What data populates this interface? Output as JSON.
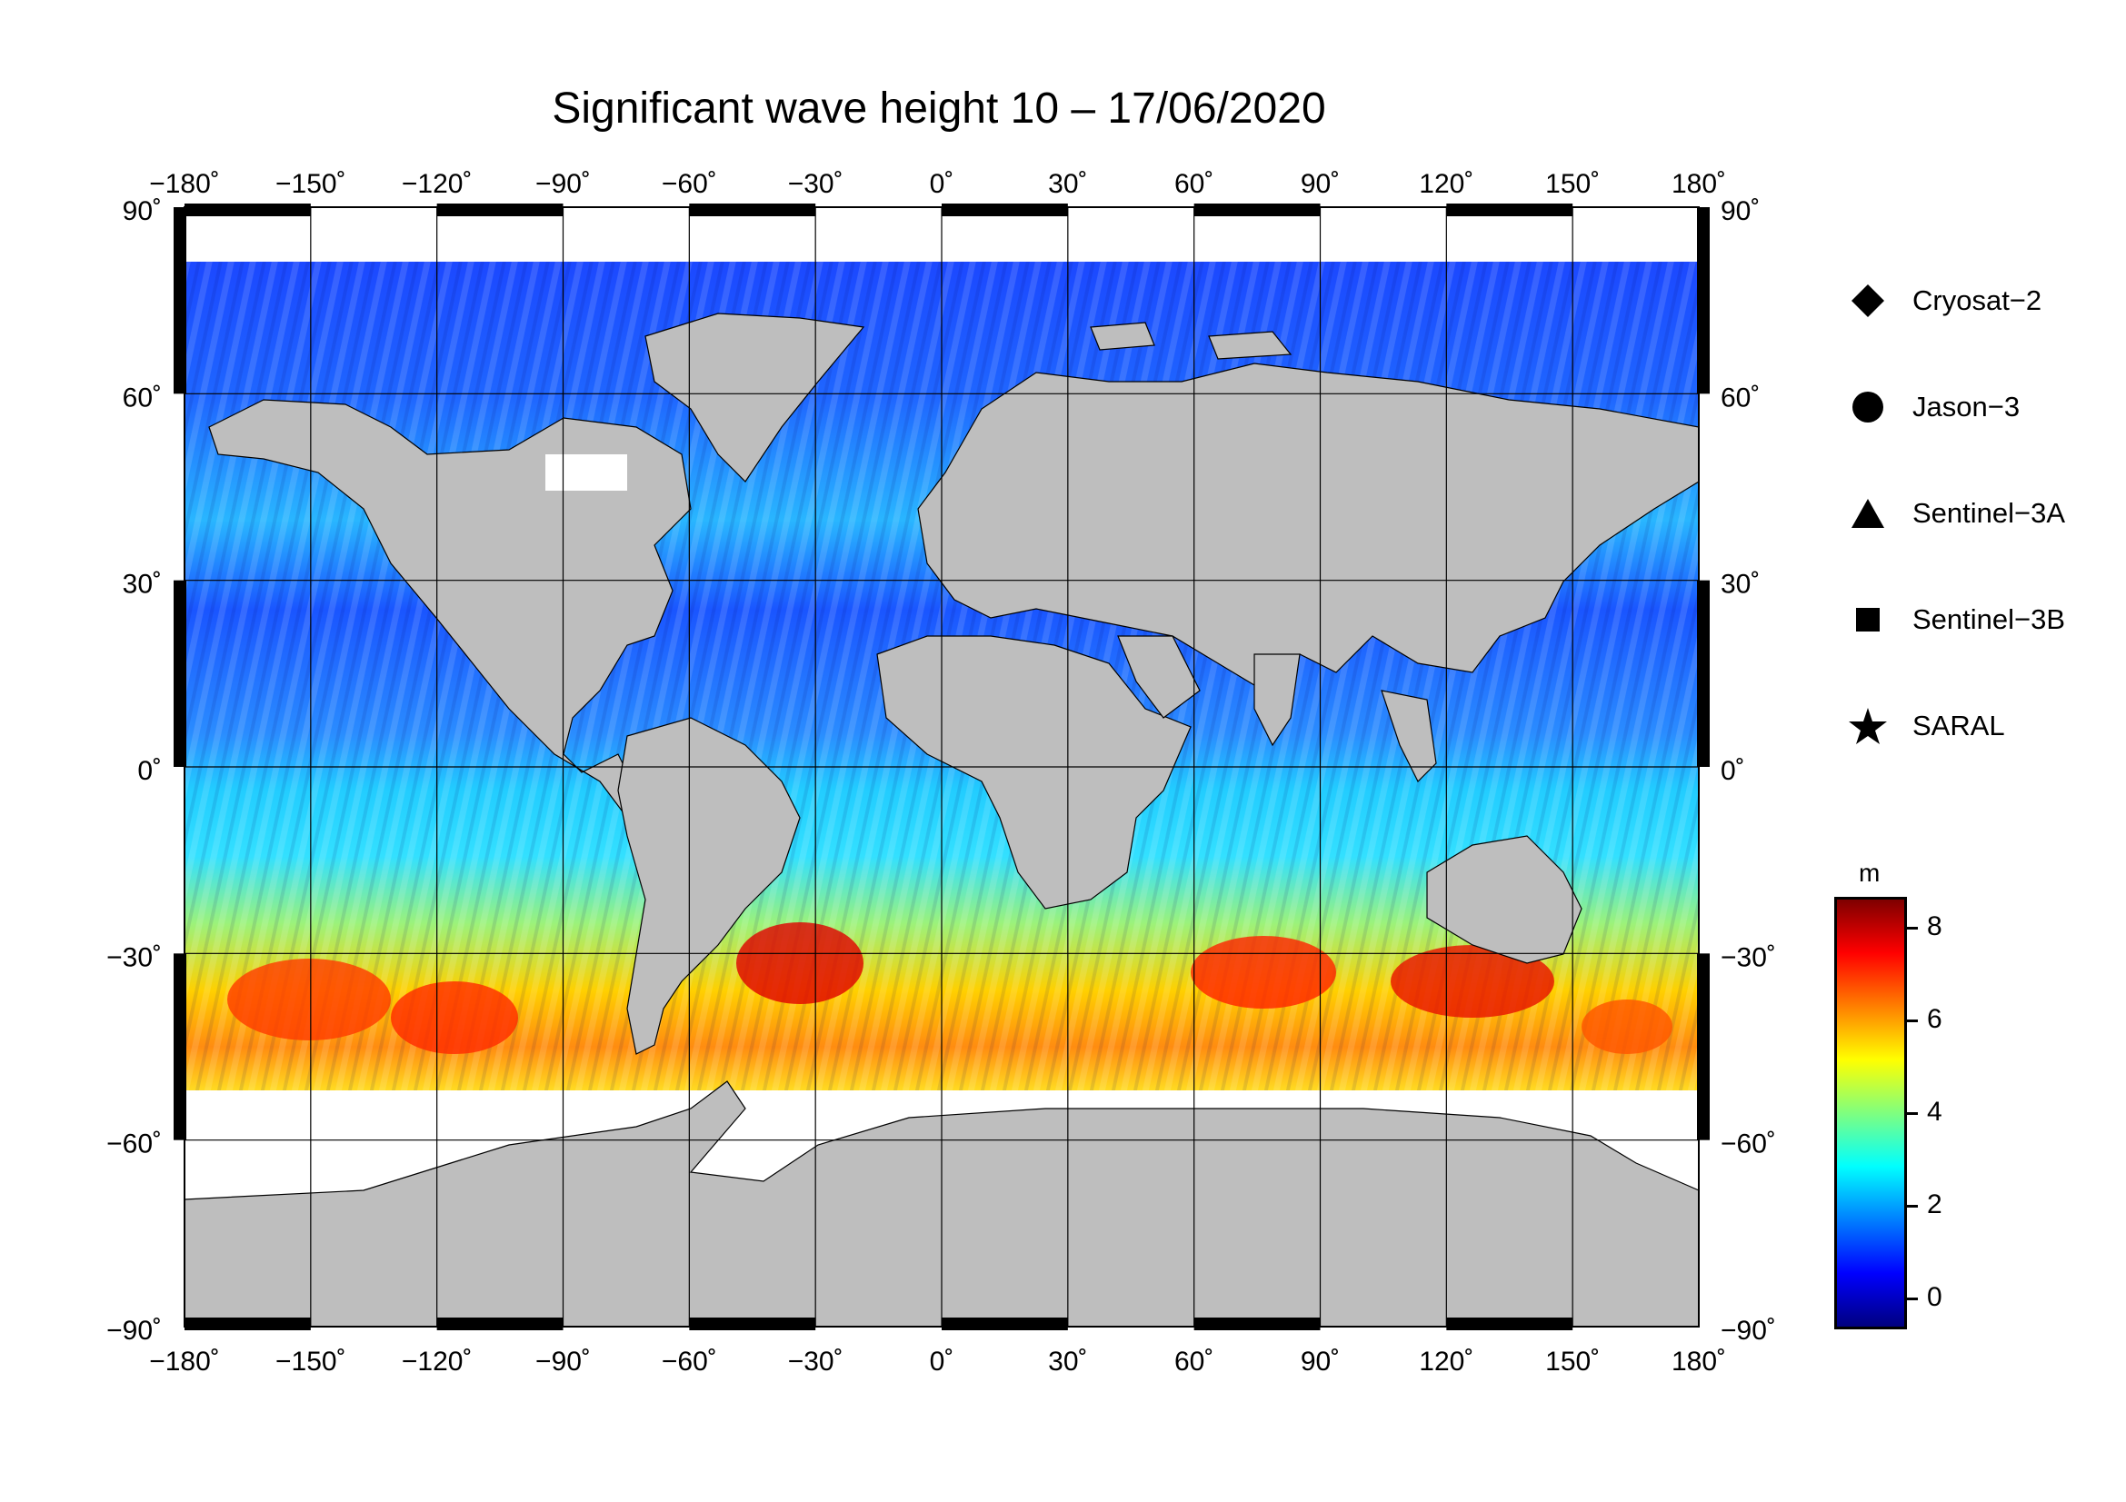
{
  "title": "Significant wave height 10 – 17/06/2020",
  "map": {
    "projection": "equirectangular",
    "lon_ticks": [
      "−180˚",
      "−150˚",
      "−120˚",
      "−90˚",
      "−60˚",
      "−30˚",
      "0˚",
      "30˚",
      "60˚",
      "90˚",
      "120˚",
      "150˚",
      "180˚"
    ],
    "lat_ticks": [
      "90˚",
      "60˚",
      "30˚",
      "0˚",
      "−30˚",
      "−60˚",
      "−90˚"
    ],
    "lon_values": [
      -180,
      -150,
      -120,
      -90,
      -60,
      -30,
      0,
      30,
      60,
      90,
      120,
      150,
      180
    ],
    "lat_values": [
      90,
      60,
      30,
      0,
      -30,
      -60,
      -90
    ],
    "land_color": "#bebebe",
    "ice_color": "#ffffff"
  },
  "legend": {
    "items": [
      {
        "label": "Cryosat−2",
        "symbol": "diamond-icon"
      },
      {
        "label": "Jason−3",
        "symbol": "circle-icon"
      },
      {
        "label": "Sentinel−3A",
        "symbol": "triangle-icon"
      },
      {
        "label": "Sentinel−3B",
        "symbol": "square-icon"
      },
      {
        "label": "SARAL",
        "symbol": "star-icon"
      }
    ]
  },
  "colorbar": {
    "unit": "m",
    "ticks": [
      "8",
      "6",
      "4",
      "2",
      "0"
    ],
    "tick_values": [
      8,
      6,
      4,
      2,
      0
    ],
    "range": [
      -0.6,
      8.6
    ],
    "colors": [
      "#00007f",
      "#0000ff",
      "#007fff",
      "#00ffff",
      "#7fff7f",
      "#ffff00",
      "#ff7f00",
      "#ff0000",
      "#7f0000"
    ]
  }
}
